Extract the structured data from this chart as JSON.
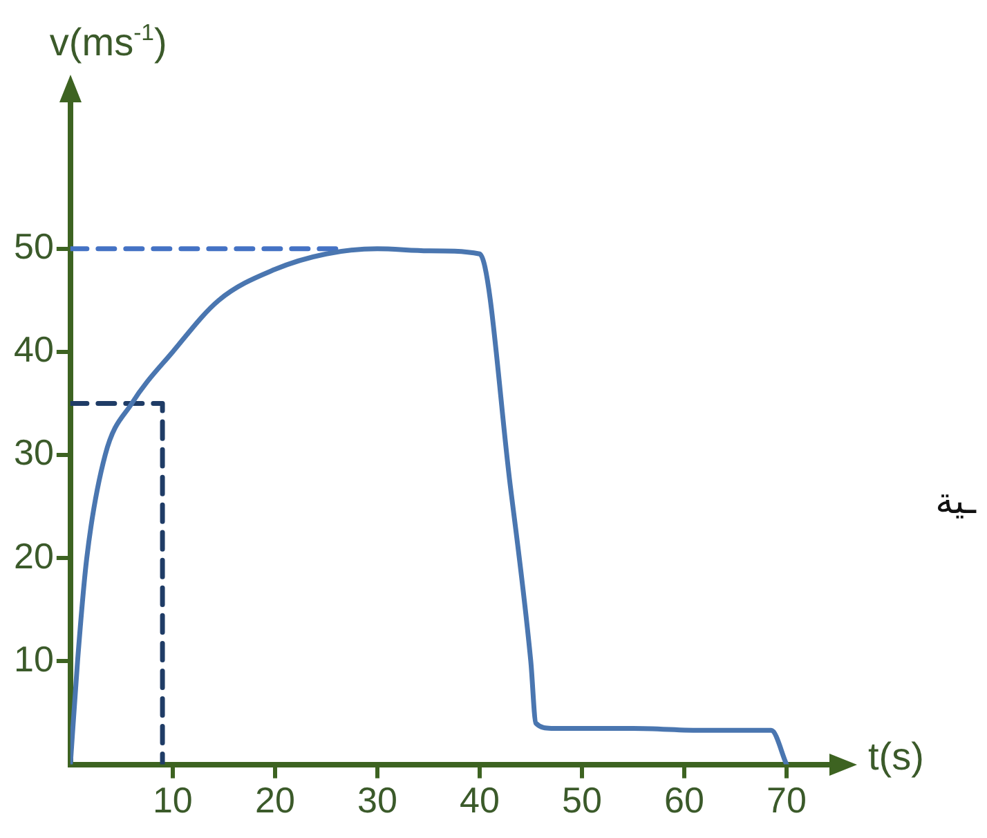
{
  "chart_data": {
    "type": "line",
    "xlabel": "t(s)",
    "ylabel": "v(ms$^{-1}$)",
    "xlim": [
      0,
      75
    ],
    "ylim": [
      0,
      65
    ],
    "xticks": [
      10,
      20,
      30,
      40,
      50,
      60,
      70
    ],
    "yticks": [
      10,
      20,
      30,
      40,
      50
    ],
    "grid": false,
    "legend": false,
    "marker": "none",
    "series": [
      {
        "color": "#4a76b0",
        "line_style": "solid",
        "x": [
          0,
          0.7,
          1.6,
          3.4,
          6,
          10,
          14.5,
          20,
          25,
          30,
          35,
          40,
          43,
          45,
          45.5,
          47,
          55,
          62,
          68.5,
          70
        ],
        "values": [
          0,
          10,
          20,
          30,
          35,
          40,
          45,
          48,
          49.5,
          50,
          49.8,
          49.5,
          27,
          10,
          4,
          3.5,
          3.5,
          3.3,
          3.3,
          0
        ]
      },
      {
        "color": "#4472c4",
        "line_style": "dashed",
        "x": [
          0,
          27
        ],
        "values": [
          50,
          50
        ]
      },
      {
        "color": "#1f3c66",
        "line_style": "dashed",
        "x": [
          0,
          9,
          9
        ],
        "values": [
          35,
          35,
          0
        ]
      }
    ],
    "annotations": [
      "ـية"
    ]
  }
}
